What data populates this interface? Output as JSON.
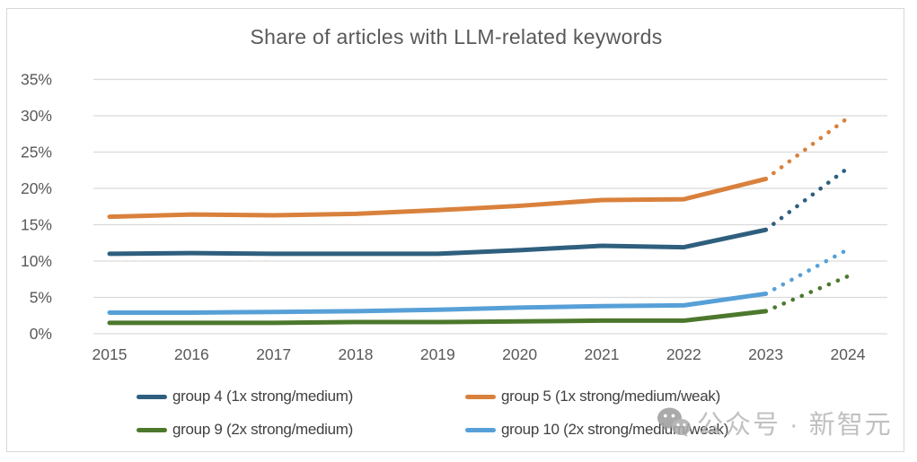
{
  "title": "Share of articles with LLM-related keywords",
  "watermark": {
    "icon": "wechat-icon",
    "text": "公众号 · 新智元"
  },
  "colors": {
    "title_text": "#595959",
    "axis_text": "#595959",
    "legend_text": "#404040",
    "gridline": "#dadada",
    "panel_border": "#d8d8d8",
    "watermark_gray": "#b6b6b6"
  },
  "chart_data": {
    "type": "line",
    "title": "Share of articles with LLM-related keywords",
    "categories": [
      "2015",
      "2016",
      "2017",
      "2018",
      "2019",
      "2020",
      "2021",
      "2022",
      "2023",
      "2024"
    ],
    "xlabel": "",
    "ylabel": "",
    "ylim": [
      0,
      35
    ],
    "grid": "horizontal",
    "legend_position": "bottom",
    "y_ticks": [
      0,
      5,
      10,
      15,
      20,
      25,
      30,
      35
    ],
    "y_tick_labels": [
      "0%",
      "5%",
      "10%",
      "15%",
      "20%",
      "25%",
      "30%",
      "35%"
    ],
    "forecast": {
      "start_category": "2023",
      "end_category": "2024",
      "style": "dotted"
    },
    "series": [
      {
        "name": "group 4 (1x strong/medium)",
        "color": "#2F5F7E",
        "values": [
          11.0,
          11.1,
          11.0,
          11.0,
          11.0,
          11.5,
          12.1,
          11.9,
          14.3,
          22.8
        ]
      },
      {
        "name": "group 5 (1x strong/medium/weak)",
        "color": "#D9813C",
        "values": [
          16.1,
          16.4,
          16.3,
          16.5,
          17.0,
          17.6,
          18.4,
          18.5,
          21.3,
          29.7
        ]
      },
      {
        "name": "group 9 (2x strong/medium)",
        "color": "#4C782C",
        "values": [
          1.5,
          1.5,
          1.5,
          1.6,
          1.6,
          1.7,
          1.8,
          1.8,
          3.1,
          7.9
        ]
      },
      {
        "name": "group 10 (2x strong/medium/weak)",
        "color": "#57A0D7",
        "values": [
          2.9,
          2.9,
          3.0,
          3.1,
          3.3,
          3.6,
          3.8,
          3.9,
          5.5,
          11.6
        ]
      }
    ]
  }
}
